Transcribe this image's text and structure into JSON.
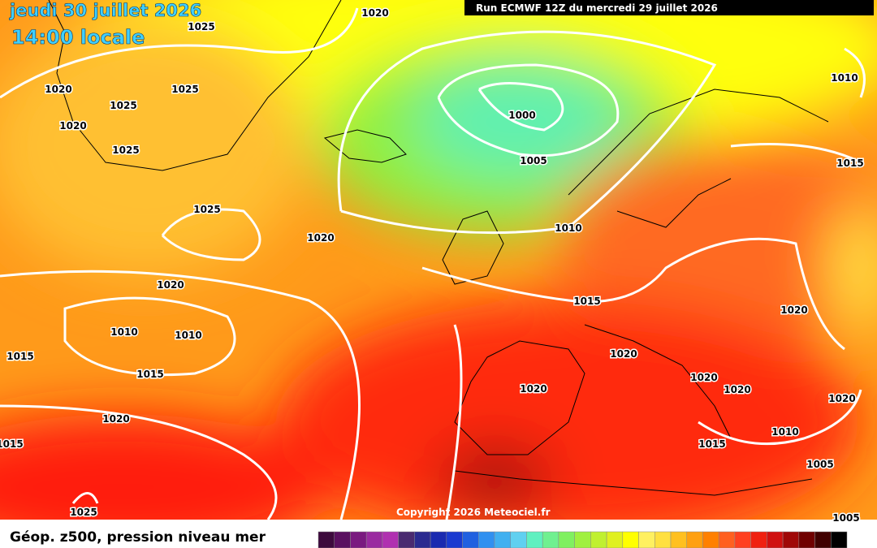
{
  "header": {
    "date": "jeudi 30 juillet 2026",
    "time": "14:00 locale",
    "run": "Run ECMWF 12Z du mercredi 29 juillet 2026"
  },
  "isobar_labels": [
    "1020",
    "1025",
    "1020",
    "1025",
    "1025",
    "1020",
    "1025",
    "1000",
    "1005",
    "1010",
    "1015",
    "1025",
    "1020",
    "1010",
    "1020",
    "1015",
    "1020",
    "1010",
    "1010",
    "1015",
    "1020",
    "1015",
    "1020",
    "1020",
    "1020",
    "1020",
    "1020",
    "1015",
    "1010",
    "1015",
    "1005",
    "1025",
    "1005"
  ],
  "copyright": "Copyright 2026 Meteociel.fr",
  "legend": {
    "title": "Géop. z500, pression niveau mer",
    "colors": [
      "#3d0a3d",
      "#5a1060",
      "#7a1a80",
      "#9a2aa0",
      "#b030b0",
      "#4a2a70",
      "#2a2a90",
      "#1a2ab0",
      "#1a3ad0",
      "#2060e0",
      "#3090f0",
      "#40b0f0",
      "#60d0f0",
      "#60f0c0",
      "#70f090",
      "#80f060",
      "#a0f040",
      "#c0f030",
      "#e0f020",
      "#ffff00",
      "#fff060",
      "#ffe040",
      "#ffc020",
      "#ffa010",
      "#ff8000",
      "#ff6020",
      "#ff4020",
      "#f02010",
      "#d01010",
      "#a00808",
      "#700000",
      "#400000",
      "#000000"
    ]
  }
}
